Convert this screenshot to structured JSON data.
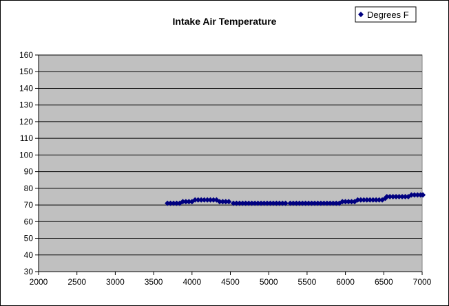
{
  "chart_data": {
    "type": "scatter",
    "title": "Intake Air Temperature",
    "xlabel": "",
    "ylabel": "",
    "xlim": [
      2000,
      7000
    ],
    "ylim": [
      30,
      160
    ],
    "x_ticks": [
      2000,
      2500,
      3000,
      3500,
      4000,
      4500,
      5000,
      5500,
      6000,
      6500,
      7000
    ],
    "y_ticks": [
      30,
      40,
      50,
      60,
      70,
      80,
      90,
      100,
      110,
      120,
      130,
      140,
      150,
      160
    ],
    "grid": "horizontal",
    "legend_position": "top-right",
    "series": [
      {
        "name": "Degrees F",
        "color": "#000080",
        "marker": "diamond",
        "points": [
          [
            3680,
            71
          ],
          [
            3720,
            71
          ],
          [
            3760,
            71
          ],
          [
            3800,
            71
          ],
          [
            3840,
            71
          ],
          [
            3880,
            72
          ],
          [
            3920,
            72
          ],
          [
            3960,
            72
          ],
          [
            4000,
            72
          ],
          [
            4040,
            73
          ],
          [
            4080,
            73
          ],
          [
            4120,
            73
          ],
          [
            4160,
            73
          ],
          [
            4200,
            73
          ],
          [
            4240,
            73
          ],
          [
            4280,
            73
          ],
          [
            4320,
            73
          ],
          [
            4360,
            72
          ],
          [
            4400,
            72
          ],
          [
            4440,
            72
          ],
          [
            4480,
            72
          ],
          [
            4540,
            71
          ],
          [
            4580,
            71
          ],
          [
            4620,
            71
          ],
          [
            4660,
            71
          ],
          [
            4700,
            71
          ],
          [
            4740,
            71
          ],
          [
            4780,
            71
          ],
          [
            4820,
            71
          ],
          [
            4860,
            71
          ],
          [
            4900,
            71
          ],
          [
            4940,
            71
          ],
          [
            4980,
            71
          ],
          [
            5020,
            71
          ],
          [
            5060,
            71
          ],
          [
            5100,
            71
          ],
          [
            5140,
            71
          ],
          [
            5180,
            71
          ],
          [
            5220,
            71
          ],
          [
            5280,
            71
          ],
          [
            5320,
            71
          ],
          [
            5360,
            71
          ],
          [
            5400,
            71
          ],
          [
            5440,
            71
          ],
          [
            5480,
            71
          ],
          [
            5520,
            71
          ],
          [
            5560,
            71
          ],
          [
            5600,
            71
          ],
          [
            5640,
            71
          ],
          [
            5680,
            71
          ],
          [
            5720,
            71
          ],
          [
            5760,
            71
          ],
          [
            5800,
            71
          ],
          [
            5840,
            71
          ],
          [
            5880,
            71
          ],
          [
            5920,
            71
          ],
          [
            5960,
            72
          ],
          [
            6000,
            72
          ],
          [
            6040,
            72
          ],
          [
            6080,
            72
          ],
          [
            6120,
            72
          ],
          [
            6160,
            73
          ],
          [
            6200,
            73
          ],
          [
            6240,
            73
          ],
          [
            6280,
            73
          ],
          [
            6320,
            73
          ],
          [
            6360,
            73
          ],
          [
            6400,
            73
          ],
          [
            6440,
            73
          ],
          [
            6480,
            73
          ],
          [
            6520,
            74
          ],
          [
            6540,
            75
          ],
          [
            6580,
            75
          ],
          [
            6620,
            75
          ],
          [
            6660,
            75
          ],
          [
            6700,
            75
          ],
          [
            6740,
            75
          ],
          [
            6780,
            75
          ],
          [
            6820,
            75
          ],
          [
            6860,
            76
          ],
          [
            6900,
            76
          ],
          [
            6940,
            76
          ],
          [
            6980,
            76
          ],
          [
            7010,
            76
          ]
        ]
      }
    ]
  },
  "colors": {
    "plot_background": "#c0c0c0",
    "gridline": "#000000",
    "marker": "#000080"
  }
}
